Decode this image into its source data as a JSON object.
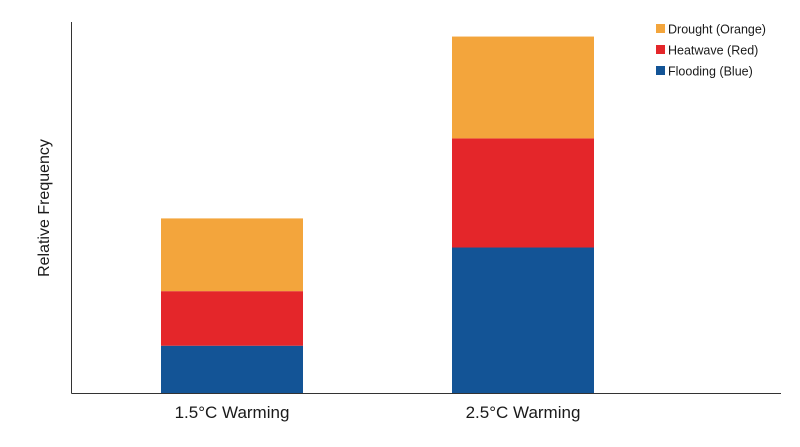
{
  "chart_data": {
    "type": "bar",
    "stacked": true,
    "categories": [
      "1.5°C Warming",
      "2.5°C Warming"
    ],
    "series": [
      {
        "name": "Flooding (Blue)",
        "values": [
          1.3,
          4.0
        ],
        "color": "#135496"
      },
      {
        "name": "Heatwave (Red)",
        "values": [
          1.5,
          3.0
        ],
        "color": "#e4262a"
      },
      {
        "name": "Drought (Orange)",
        "values": [
          2.0,
          2.8
        ],
        "color": "#f3a53c"
      }
    ],
    "title": "",
    "xlabel": "",
    "ylabel": "Relative Frequency",
    "ylim": [
      0,
      10.2
    ],
    "y_ticks_shown": false,
    "grid": false,
    "legend_position": "top-right",
    "legend_order": [
      "Drought (Orange)",
      "Heatwave (Red)",
      "Flooding (Blue)"
    ]
  }
}
